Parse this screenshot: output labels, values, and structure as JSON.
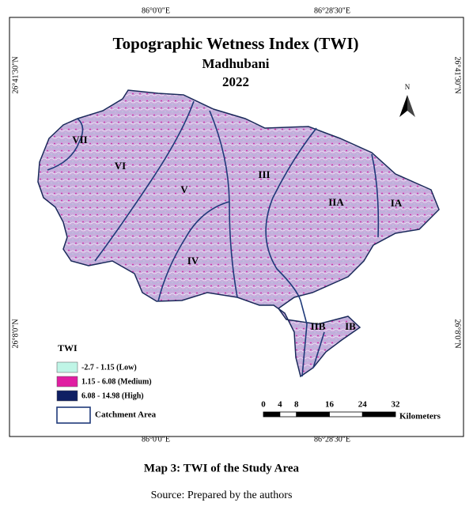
{
  "map": {
    "title": "Topographic Wetness Index (TWI)",
    "subtitle": "Madhubani",
    "year": 2022,
    "coordinates": {
      "top": [
        "86°0'0\"E",
        "86°28'30\"E"
      ],
      "bottom": [
        "86°0'0\"E",
        "86°28'30\"E"
      ],
      "left": [
        "26°41'30\"N",
        "26°8'0\"N"
      ],
      "right": [
        "26°41'30\"N",
        "26°8'0\"N"
      ]
    },
    "zones": [
      "VII",
      "VI",
      "V",
      "IV",
      "III",
      "IIA",
      "IA",
      "IIB",
      "IB"
    ],
    "north": "N",
    "legend": {
      "title": "TWI",
      "items": [
        "-2.7 - 1.15 (Low)",
        "1.15 - 6.08 (Medium)",
        "6.08 - 14.98 (High)"
      ],
      "catchment": "Catchment Area"
    },
    "scale": {
      "ticks": [
        0,
        4,
        8,
        16,
        24,
        32
      ],
      "unit": "Kilometers"
    }
  },
  "caption": "Map 3: TWI of the Study Area",
  "source": "Source: Prepared by the authors"
}
